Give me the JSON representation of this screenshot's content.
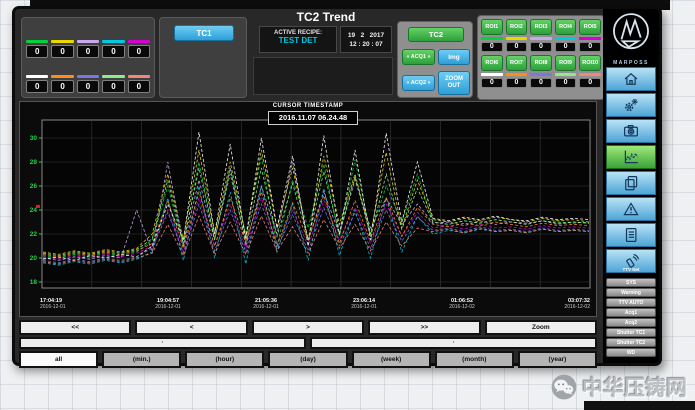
{
  "header": {
    "title": "TC2 Trend",
    "tc1_button": "TC1",
    "active_recipe_label": "ACTIVE RECIPE:",
    "active_recipe_value": "TEST DET",
    "date": "19   2   2017",
    "time": "12 : 20 : 07",
    "indicators": {
      "row1": [
        {
          "color": "#00d23c",
          "value": "0"
        },
        {
          "color": "#e8d800",
          "value": "0"
        },
        {
          "color": "#c8a8e8",
          "value": "0"
        },
        {
          "color": "#00c8e0",
          "value": "0"
        },
        {
          "color": "#d400d4",
          "value": "0"
        }
      ],
      "row2": [
        {
          "color": "#ffffff",
          "value": "0"
        },
        {
          "color": "#ff8c1a",
          "value": "0"
        },
        {
          "color": "#7878e0",
          "value": "0"
        },
        {
          "color": "#90e890",
          "value": "0"
        },
        {
          "color": "#f08878",
          "value": "0"
        }
      ]
    },
    "controls": {
      "tc2": "TC2",
      "acq1": "« ACQ1 »",
      "img": "Img",
      "acq2": "« ACQ2 »",
      "zoom_out": "ZOOM OUT"
    },
    "roi": {
      "row1": [
        {
          "label": "ROI1",
          "color": "#00d23c",
          "value": "0"
        },
        {
          "label": "ROI2",
          "color": "#e8d800",
          "value": "0"
        },
        {
          "label": "ROI3",
          "color": "#c8a8e8",
          "value": "0"
        },
        {
          "label": "ROI4",
          "color": "#00c8e0",
          "value": "0"
        },
        {
          "label": "ROI5",
          "color": "#d400d4",
          "value": "0"
        }
      ],
      "row2": [
        {
          "label": "ROI6",
          "color": "#ffffff",
          "value": "0"
        },
        {
          "label": "ROI7",
          "color": "#ff8c1a",
          "value": "0"
        },
        {
          "label": "ROI8",
          "color": "#7878e0",
          "value": "0"
        },
        {
          "label": "ROI9",
          "color": "#90e890",
          "value": "0"
        },
        {
          "label": "ROI10",
          "color": "#f08878",
          "value": "0"
        }
      ]
    }
  },
  "chart": {
    "cursor_label": "CURSOR TIMESTAMP",
    "cursor_value": "2016.11.07 06.24.48",
    "axis_color": "#22d34a",
    "grid_color": "#3a3a3a",
    "bg_color": "#050505"
  },
  "chart_data": {
    "type": "line",
    "title": "TC2 Trend",
    "ylim": [
      17.5,
      31.5
    ],
    "yticks": [
      30,
      28,
      26,
      24,
      22,
      20,
      18
    ],
    "grid": true,
    "x_labels": [
      {
        "time": "17:04:19",
        "date": "2016-12-01"
      },
      {
        "time": "19:04:57",
        "date": "2016-12-01"
      },
      {
        "time": "21:05:36",
        "date": "2016-12-01"
      },
      {
        "time": "23:06:14",
        "date": "2016-12-01"
      },
      {
        "time": "01:06:52",
        "date": "2016-12-02"
      },
      {
        "time": "03:07:32",
        "date": "2016-12-02"
      }
    ],
    "series": [
      {
        "name": "ROI1",
        "color": "#00d23c",
        "values": [
          20.2,
          20.0,
          20.3,
          20.1,
          20.4,
          20.2,
          20.5,
          21.5,
          26.0,
          21.0,
          28.0,
          21.5,
          27.5,
          22.0,
          28.5,
          21.0,
          26.5,
          22.5,
          27.8,
          21.8,
          28.2,
          22.0,
          26.0,
          23.0,
          27.0,
          23.0,
          22.8,
          23.1,
          22.9,
          23.2,
          23.0,
          22.8,
          23.1,
          23.0,
          22.9,
          23.0
        ]
      },
      {
        "name": "ROI2",
        "color": "#e8d800",
        "values": [
          20.5,
          20.3,
          20.6,
          20.4,
          20.7,
          20.5,
          20.8,
          22.0,
          27.0,
          21.5,
          29.0,
          22.0,
          28.0,
          21.8,
          29.0,
          22.5,
          27.5,
          21.5,
          28.5,
          22.8,
          27.0,
          22.0,
          28.8,
          22.5,
          26.5,
          23.2,
          23.0,
          23.3,
          23.1,
          23.4,
          23.2,
          23.0,
          23.3,
          23.1,
          23.2,
          23.0
        ]
      },
      {
        "name": "ROI3",
        "color": "#c8a8e8",
        "values": [
          20.0,
          19.8,
          20.1,
          19.9,
          20.2,
          20.0,
          24.0,
          20.5,
          28.0,
          21.0,
          26.5,
          21.5,
          27.5,
          21.0,
          26.0,
          22.0,
          28.0,
          21.5,
          25.5,
          22.0,
          26.5,
          22.5,
          25.0,
          22.8,
          24.5,
          22.9,
          23.0,
          22.7,
          23.1,
          22.8,
          23.0,
          22.9,
          23.1,
          22.8,
          23.0,
          22.9
        ]
      },
      {
        "name": "ROI4",
        "color": "#00c8e0",
        "values": [
          19.6,
          19.4,
          19.7,
          19.5,
          19.8,
          19.6,
          19.9,
          20.5,
          25.0,
          19.8,
          26.0,
          20.0,
          25.5,
          19.5,
          26.0,
          20.5,
          24.5,
          19.8,
          25.8,
          20.2,
          24.0,
          20.0,
          25.0,
          20.5,
          23.5,
          22.0,
          22.3,
          22.1,
          22.4,
          22.2,
          22.3,
          22.1,
          22.4,
          22.2,
          22.3,
          22.2
        ]
      },
      {
        "name": "ROI5",
        "color": "#d400d4",
        "values": [
          20.1,
          19.9,
          20.2,
          20.0,
          20.3,
          20.1,
          20.4,
          21.0,
          24.0,
          20.5,
          25.0,
          21.0,
          24.5,
          20.8,
          25.0,
          21.2,
          24.0,
          21.0,
          24.8,
          21.5,
          24.2,
          21.2,
          24.5,
          21.8,
          23.8,
          22.5,
          22.7,
          22.4,
          22.8,
          22.5,
          22.6,
          22.4,
          22.7,
          22.5,
          22.6,
          22.5
        ]
      },
      {
        "name": "ROI6",
        "color": "#ffffff",
        "values": [
          19.9,
          20.1,
          19.8,
          20.2,
          20.0,
          20.3,
          20.1,
          21.0,
          24.5,
          21.5,
          30.5,
          22.0,
          29.5,
          21.5,
          30.0,
          22.5,
          28.5,
          21.0,
          30.2,
          22.0,
          29.0,
          21.5,
          30.4,
          23.0,
          28.0,
          23.3,
          23.1,
          23.4,
          23.2,
          23.5,
          23.2,
          23.1,
          23.4,
          23.2,
          23.3,
          23.2
        ]
      },
      {
        "name": "ROI7",
        "color": "#ff8c1a",
        "values": [
          20.3,
          20.1,
          20.4,
          20.2,
          20.5,
          20.3,
          20.6,
          21.2,
          24.8,
          20.8,
          25.5,
          21.0,
          25.0,
          21.3,
          25.5,
          21.0,
          24.6,
          21.5,
          25.2,
          21.2,
          24.8,
          21.4,
          25.0,
          21.8,
          24.2,
          22.8,
          22.6,
          22.9,
          22.7,
          23.0,
          22.8,
          22.6,
          22.9,
          22.7,
          22.8,
          22.7
        ]
      },
      {
        "name": "ROI8",
        "color": "#7878e0",
        "values": [
          19.8,
          19.6,
          19.9,
          19.7,
          20.0,
          19.8,
          20.1,
          20.8,
          23.8,
          20.4,
          24.5,
          20.6,
          24.0,
          20.5,
          24.5,
          20.8,
          23.6,
          20.6,
          24.2,
          21.0,
          23.8,
          20.8,
          24.0,
          21.4,
          23.4,
          22.3,
          22.5,
          22.2,
          22.6,
          22.3,
          22.4,
          22.2,
          22.5,
          22.3,
          22.4,
          22.3
        ]
      },
      {
        "name": "ROI9",
        "color": "#90e890",
        "values": [
          20.4,
          20.2,
          20.5,
          20.3,
          20.6,
          20.4,
          20.7,
          21.6,
          26.5,
          21.2,
          27.5,
          21.6,
          27.0,
          21.4,
          27.5,
          21.8,
          26.2,
          21.5,
          27.2,
          22.0,
          26.8,
          21.8,
          27.0,
          22.4,
          25.8,
          23.0,
          22.8,
          23.1,
          22.9,
          23.2,
          23.0,
          22.8,
          23.1,
          22.9,
          23.0,
          22.9
        ]
      },
      {
        "name": "ROI10",
        "color": "#f08878",
        "values": [
          19.7,
          19.5,
          19.8,
          19.6,
          19.9,
          19.7,
          20.0,
          20.4,
          22.8,
          20.2,
          23.5,
          20.4,
          23.0,
          20.3,
          23.5,
          20.6,
          22.6,
          20.4,
          23.2,
          20.8,
          22.8,
          20.6,
          23.0,
          21.0,
          22.5,
          22.2,
          22.4,
          22.1,
          22.5,
          22.2,
          22.3,
          22.1,
          22.4,
          22.2,
          22.3,
          22.2
        ]
      }
    ]
  },
  "nav": {
    "row1": [
      "<<",
      "<",
      ">",
      ">>",
      "Zoom"
    ],
    "row2": [
      "·",
      "·"
    ],
    "row3": [
      "all",
      "(min.)",
      "(hour)",
      "(day)",
      "(week)",
      "(month)",
      "(year)"
    ],
    "row3_active_index": 0
  },
  "sidebar": {
    "brand": "MARPOSS",
    "buttons": [
      {
        "icon": "home-icon"
      },
      {
        "icon": "gears-icon"
      },
      {
        "icon": "camera-icon"
      },
      {
        "icon": "trend-chart-icon",
        "active": true
      },
      {
        "icon": "images-icon"
      },
      {
        "icon": "warning-icon"
      },
      {
        "icon": "report-icon"
      },
      {
        "icon": "ttv-net-icon",
        "label": "TTV Net"
      }
    ],
    "status_items": [
      "SYS",
      "Warning",
      "TTV AUTO",
      "Acq1",
      "Acq2",
      "Shutter TC1",
      "Shutter TC2",
      "WD"
    ]
  },
  "watermark": "中华压铸网"
}
